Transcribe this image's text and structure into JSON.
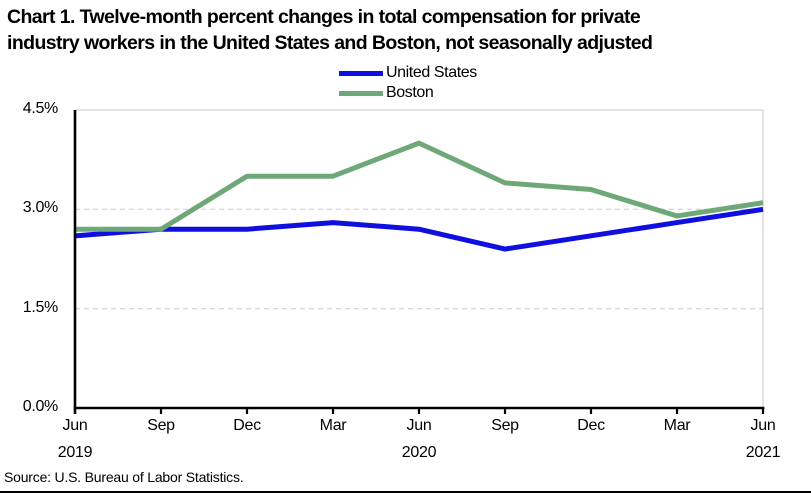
{
  "title": {
    "line1": "Chart 1. Twelve-month percent changes in total compensation for private",
    "line2": "industry workers in the United States and Boston, not seasonally adjusted"
  },
  "source": "Source: U.S. Bureau of Labor Statistics.",
  "chart_data": {
    "type": "line",
    "title": "Chart 1. Twelve-month percent changes in total compensation for private industry workers in the United States and Boston, not seasonally adjusted",
    "categories": [
      "Jun 2019",
      "Sep 2019",
      "Dec 2019",
      "Mar 2020",
      "Jun 2020",
      "Sep 2020",
      "Dec 2020",
      "Mar 2021",
      "Jun 2021"
    ],
    "x_tick_labels": [
      "Jun",
      "Sep",
      "Dec",
      "Mar",
      "Jun",
      "Sep",
      "Dec",
      "Mar",
      "Jun"
    ],
    "x_year_labels": [
      {
        "index": 0,
        "label": "2019"
      },
      {
        "index": 4,
        "label": "2020"
      },
      {
        "index": 8,
        "label": "2021"
      }
    ],
    "series": [
      {
        "name": "United States",
        "color": "#0f0fe0",
        "values": [
          2.6,
          2.7,
          2.7,
          2.8,
          2.7,
          2.4,
          2.6,
          2.8,
          3.0
        ]
      },
      {
        "name": "Boston",
        "color": "#6fa878",
        "values": [
          2.7,
          2.7,
          3.5,
          3.5,
          4.0,
          3.4,
          3.3,
          2.9,
          3.1
        ]
      }
    ],
    "xlabel": "",
    "ylabel": "",
    "ylim": [
      0,
      4.5
    ],
    "yticks": [
      {
        "value": 0,
        "label": "0.0%"
      },
      {
        "value": 1.5,
        "label": "1.5%"
      },
      {
        "value": 3.0,
        "label": "3.0%"
      },
      {
        "value": 4.5,
        "label": "4.5%"
      }
    ],
    "grid": "horizontal, dashed at 1.5 and 3.0, solid top border at 4.5",
    "grid_color": "#d9d9d9",
    "axis_color": "#000000",
    "legend_position": "top-center"
  }
}
